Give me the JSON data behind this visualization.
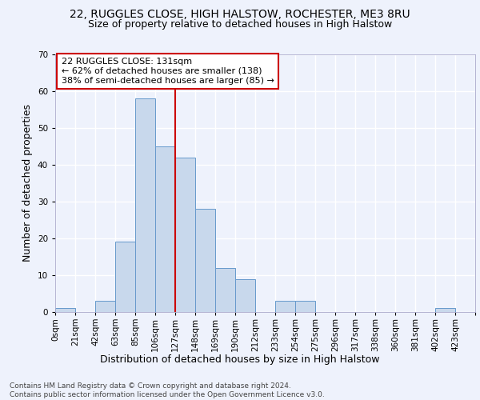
{
  "title_line1": "22, RUGGLES CLOSE, HIGH HALSTOW, ROCHESTER, ME3 8RU",
  "title_line2": "Size of property relative to detached houses in High Halstow",
  "xlabel": "Distribution of detached houses by size in High Halstow",
  "ylabel": "Number of detached properties",
  "footnote": "Contains HM Land Registry data © Crown copyright and database right 2024.\nContains public sector information licensed under the Open Government Licence v3.0.",
  "bin_labels": [
    "0sqm",
    "21sqm",
    "42sqm",
    "63sqm",
    "85sqm",
    "106sqm",
    "127sqm",
    "148sqm",
    "169sqm",
    "190sqm",
    "212sqm",
    "233sqm",
    "254sqm",
    "275sqm",
    "296sqm",
    "317sqm",
    "338sqm",
    "360sqm",
    "381sqm",
    "402sqm",
    "423sqm"
  ],
  "bar_heights": [
    1,
    0,
    3,
    19,
    58,
    45,
    42,
    28,
    12,
    9,
    0,
    3,
    3,
    0,
    0,
    0,
    0,
    0,
    0,
    1,
    0
  ],
  "bar_color": "#c8d8ec",
  "bar_edge_color": "#6699cc",
  "annotation_text": "22 RUGGLES CLOSE: 131sqm\n← 62% of detached houses are smaller (138)\n38% of semi-detached houses are larger (85) →",
  "vline_x": 6.0,
  "vline_color": "#cc0000",
  "box_color": "#cc0000",
  "ylim_max": 70,
  "yticks": [
    0,
    10,
    20,
    30,
    40,
    50,
    60,
    70
  ],
  "background_color": "#eef2fc",
  "grid_color": "#ffffff",
  "title_fontsize": 10,
  "subtitle_fontsize": 9,
  "label_fontsize": 9,
  "tick_fontsize": 7.5,
  "annot_fontsize": 8,
  "footnote_fontsize": 6.5
}
